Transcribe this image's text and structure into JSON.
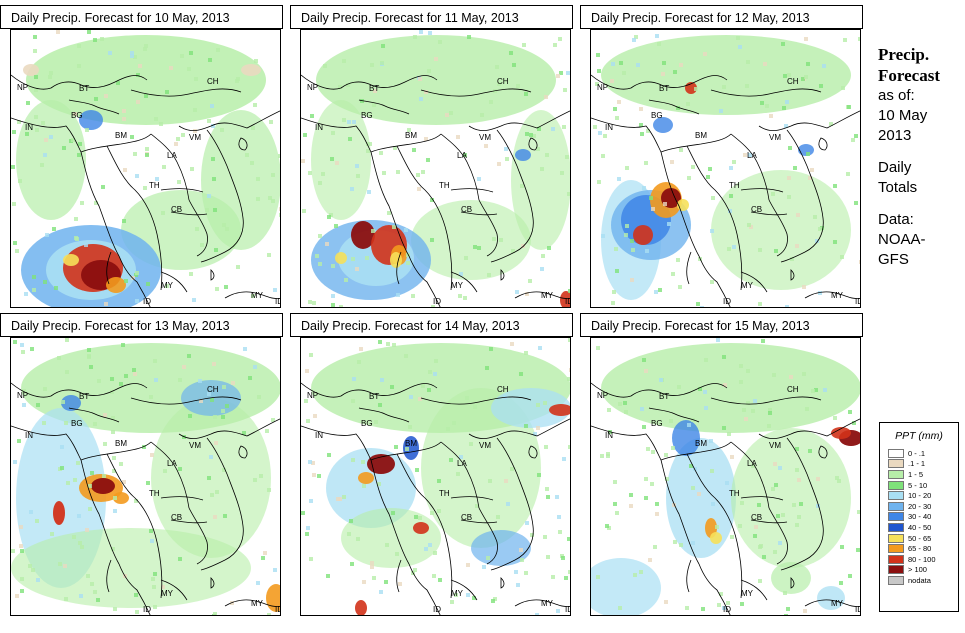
{
  "panels": [
    {
      "title": "Daily Precip. Forecast for  10 May, 2013"
    },
    {
      "title": "Daily Precip. Forecast for  11 May, 2013"
    },
    {
      "title": "Daily Precip. Forecast for  12 May, 2013"
    },
    {
      "title": "Daily Precip. Forecast for  13 May, 2013"
    },
    {
      "title": "Daily Precip. Forecast for  14 May, 2013"
    },
    {
      "title": "Daily Precip. Forecast for  15 May, 2013"
    }
  ],
  "country_labels": [
    "NP",
    "BT",
    "BG",
    "IN",
    "BM",
    "CH",
    "VM",
    "LA",
    "TH",
    "CB",
    "MY",
    "ID",
    "MY",
    "ID"
  ],
  "sidebar": {
    "title_line1": "Precip.",
    "title_line2": "Forecast",
    "asof": "as of:",
    "date_line1": "10 May",
    "date_line2": "2013",
    "daily_line1": "Daily",
    "daily_line2": "Totals",
    "data_line1": "Data:",
    "data_line2": "NOAA-",
    "data_line3": "GFS"
  },
  "legend": {
    "title": "PPT (mm)",
    "items": [
      {
        "label": "0 - .1",
        "color": "#ffffff"
      },
      {
        "label": ".1 - 1",
        "color": "#ead9c0"
      },
      {
        "label": "1 - 5",
        "color": "#b7eea9"
      },
      {
        "label": "5 - 10",
        "color": "#7fe27a"
      },
      {
        "label": "10 - 20",
        "color": "#a9dff3"
      },
      {
        "label": "20 - 30",
        "color": "#6fb3ee"
      },
      {
        "label": "30 - 40",
        "color": "#3f86e6"
      },
      {
        "label": "40 - 50",
        "color": "#1f55cf"
      },
      {
        "label": "50 - 65",
        "color": "#f6e05a"
      },
      {
        "label": "65 - 80",
        "color": "#f39a1e"
      },
      {
        "label": "80 - 100",
        "color": "#d2321a"
      },
      {
        "label": "> 100",
        "color": "#8b0f0f"
      },
      {
        "label": "nodata",
        "color": "#c8c8c8"
      }
    ]
  }
}
